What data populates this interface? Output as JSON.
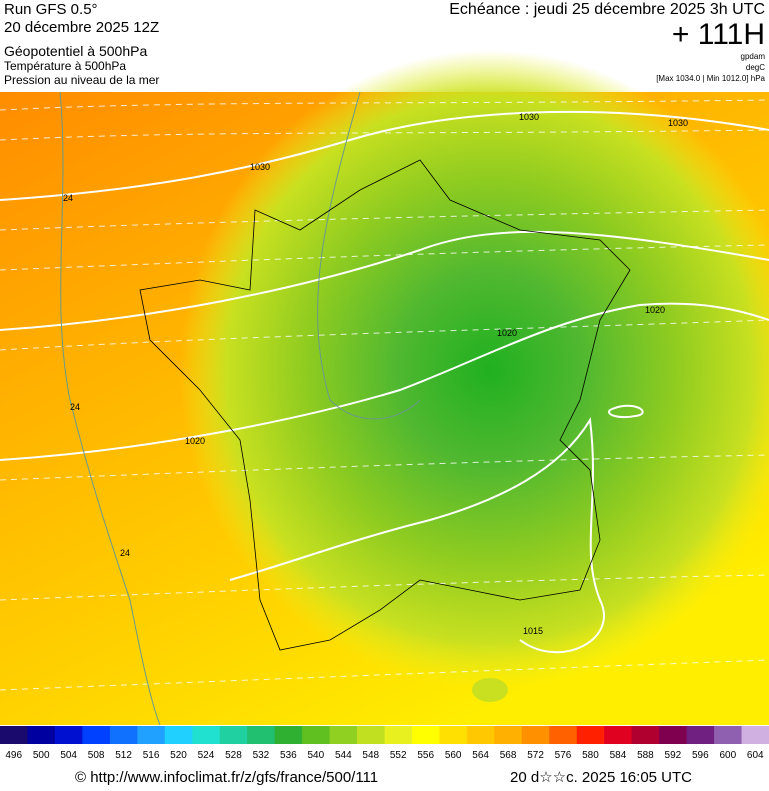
{
  "header": {
    "run": "Run GFS 0.5°",
    "date": "20 décembre 2025 12Z",
    "param1": "Géopotentiel à 500hPa",
    "param2": "Température à 500hPa",
    "param3": "Pression au niveau de la mer",
    "echeance": "Echéance : jeudi 25 décembre 2025 3h UTC",
    "hour": "+ 111H",
    "unit1": "gpdam",
    "unit2": "degC",
    "unit3": "[Max 1034.0 | Min 1012.0] hPa"
  },
  "map": {
    "contour_labels": [
      "1030",
      "1030",
      "1030",
      "1020",
      "1020",
      "1020",
      "24",
      "24",
      "24",
      "1015"
    ]
  },
  "colorbar": {
    "ticks": [
      496,
      500,
      504,
      508,
      512,
      516,
      520,
      524,
      528,
      532,
      536,
      540,
      544,
      548,
      552,
      556,
      560,
      564,
      568,
      572,
      576,
      580,
      584,
      588,
      592,
      596,
      600,
      604
    ],
    "colors": [
      "#1a0a6e",
      "#0000a0",
      "#0010d0",
      "#0040ff",
      "#1070ff",
      "#20a0ff",
      "#20d0ff",
      "#20e0d0",
      "#20d0a0",
      "#20c070",
      "#30b030",
      "#60c020",
      "#90d020",
      "#c0e020",
      "#e8f020",
      "#ffff00",
      "#ffe000",
      "#ffc800",
      "#ffb000",
      "#ff9000",
      "#ff6000",
      "#ff2000",
      "#e00020",
      "#b00030",
      "#800050",
      "#702080",
      "#9060b0",
      "#d0b0e0"
    ]
  },
  "footer": {
    "url": "© http://www.infoclimat.fr/z/gfs/france/500/111",
    "timestamp": "20 d☆☆c. 2025 16:05 UTC"
  }
}
